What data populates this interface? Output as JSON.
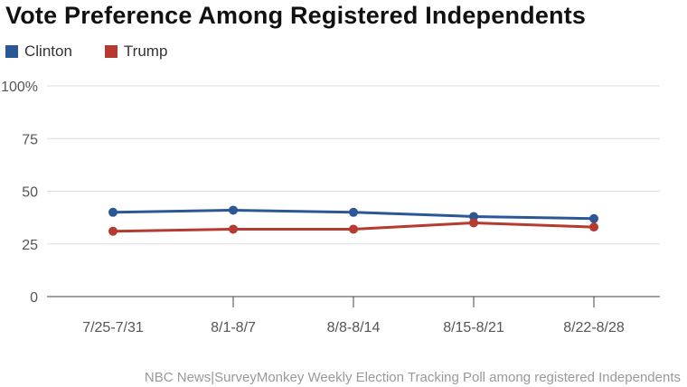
{
  "title": "Vote Preference Among Registered Independents",
  "source": "NBC News|SurveyMonkey Weekly Election Tracking Poll among registered Independents",
  "chart_data": {
    "type": "line",
    "title": "Vote Preference Among Registered Independents",
    "categories": [
      "7/25-7/31",
      "8/1-8/7",
      "8/8-8/14",
      "8/15-8/21",
      "8/22-8/28"
    ],
    "series": [
      {
        "name": "Clinton",
        "color": "#2b5797",
        "values": [
          40,
          41,
          40,
          38,
          37
        ]
      },
      {
        "name": "Trump",
        "color": "#b53a2f",
        "values": [
          31,
          32,
          32,
          35,
          33
        ]
      }
    ],
    "ylim": [
      0,
      100
    ],
    "yticks": [
      0,
      25,
      50,
      75,
      100
    ],
    "ytick_labels": [
      "0",
      "25",
      "50",
      "75",
      "100%"
    ],
    "grid": true,
    "legend": "top-left",
    "xlabel": "",
    "ylabel": ""
  }
}
